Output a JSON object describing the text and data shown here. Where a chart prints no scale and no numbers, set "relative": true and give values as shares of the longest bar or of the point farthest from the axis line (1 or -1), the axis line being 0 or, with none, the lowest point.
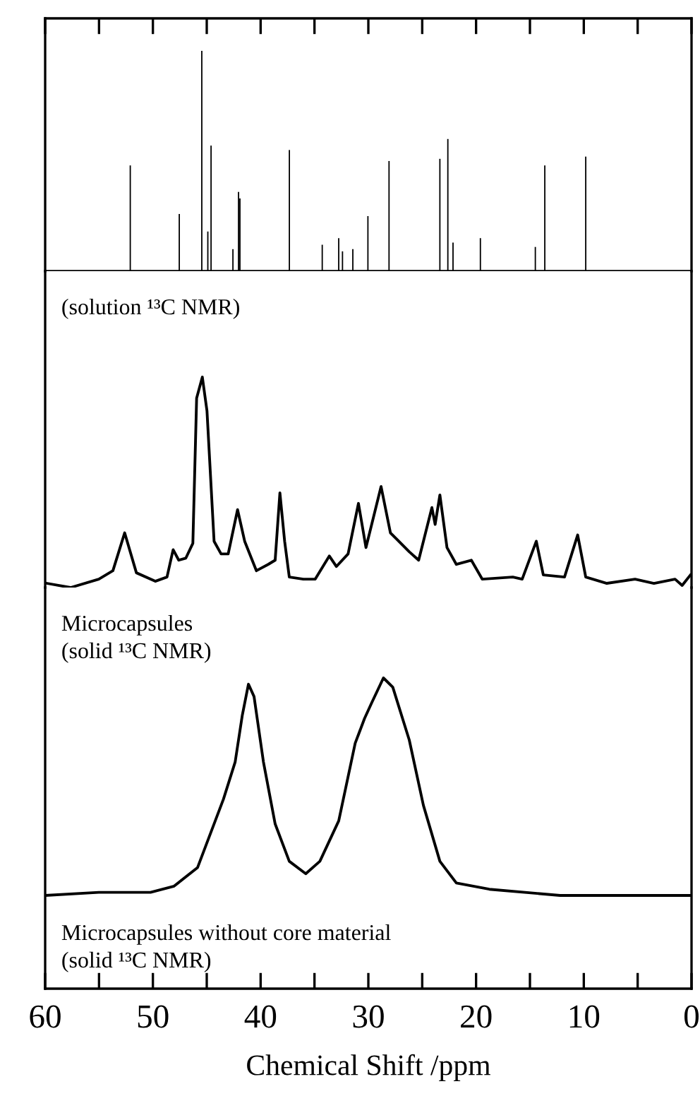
{
  "chart_data": [
    {
      "type": "bar",
      "relative": true,
      "tick_labels": false,
      "xlim": [
        60,
        0
      ],
      "xticks": [
        60,
        {
          "value": 55,
          "label": null
        },
        50,
        {
          "value": 45,
          "label": null
        },
        40,
        {
          "value": 35,
          "label": null
        },
        30,
        {
          "value": 25,
          "label": null
        },
        20,
        {
          "value": 15,
          "label": null
        },
        10,
        {
          "value": 5,
          "label": null
        },
        0
      ],
      "x": [
        52.1,
        47.55,
        45.46,
        44.9,
        44.6,
        42.57,
        42.05,
        41.92,
        37.33,
        34.28,
        32.75,
        32.4,
        31.44,
        30.04,
        28.08,
        23.36,
        22.62,
        22.14,
        19.6,
        14.5,
        13.62,
        9.82
      ],
      "values": [
        0.48,
        0.26,
        1.0,
        0.18,
        0.57,
        0.1,
        0.36,
        0.33,
        0.55,
        0.12,
        0.15,
        0.09,
        0.1,
        0.25,
        0.5,
        0.51,
        0.6,
        0.13,
        0.15,
        0.11,
        0.48,
        0.52
      ],
      "color": "#000000",
      "annotations": [
        "(solution ¹³C NMR)"
      ]
    },
    {
      "type": "line",
      "relative": true,
      "tick_labels": false,
      "xlim": [
        60,
        0
      ],
      "color": "#000000",
      "x": [
        59.83,
        57.64,
        55.02,
        53.71,
        52.62,
        51.53,
        49.78,
        48.69,
        48.12,
        47.6,
        46.94,
        46.29,
        45.94,
        45.41,
        44.98,
        44.32,
        43.67,
        43.01,
        42.14,
        41.48,
        40.39,
        39.3,
        38.65,
        38.21,
        37.77,
        37.34,
        36.03,
        34.93,
        33.62,
        32.97,
        31.88,
        30.92,
        30.22,
        28.82,
        27.95,
        26.2,
        25.33,
        24.1,
        23.8,
        23.36,
        22.7,
        21.83,
        20.44,
        19.43,
        16.59,
        15.72,
        14.41,
        13.76,
        11.79,
        10.57,
        9.82,
        7.86,
        5.24,
        3.49,
        1.53,
        0.87,
        0.1
      ],
      "values": [
        0.02,
        0.0,
        0.04,
        0.08,
        0.26,
        0.07,
        0.03,
        0.05,
        0.18,
        0.13,
        0.14,
        0.21,
        0.9,
        1.0,
        0.84,
        0.22,
        0.16,
        0.16,
        0.37,
        0.22,
        0.08,
        0.11,
        0.13,
        0.45,
        0.22,
        0.05,
        0.04,
        0.04,
        0.15,
        0.1,
        0.16,
        0.4,
        0.19,
        0.48,
        0.26,
        0.17,
        0.13,
        0.38,
        0.3,
        0.44,
        0.19,
        0.11,
        0.13,
        0.04,
        0.05,
        0.04,
        0.22,
        0.06,
        0.05,
        0.25,
        0.05,
        0.02,
        0.04,
        0.02,
        0.04,
        0.01,
        0.06
      ],
      "annotations": [
        "Microcapsules",
        "(solid ¹³C NMR)"
      ]
    },
    {
      "type": "line",
      "relative": true,
      "tick_labels": "x",
      "xlim": [
        60,
        0
      ],
      "color": "#000000",
      "xticks": [
        60,
        {
          "value": 55,
          "label": null
        },
        50,
        {
          "value": 45,
          "label": null
        },
        40,
        {
          "value": 35,
          "label": null
        },
        30,
        {
          "value": 25,
          "label": null
        },
        20,
        {
          "value": 15,
          "label": null
        },
        10,
        {
          "value": 5,
          "label": null
        },
        0
      ],
      "xlabel": "Chemical Shift /ppm",
      "x": [
        60,
        55.02,
        50.22,
        48.03,
        45.85,
        43.45,
        42.36,
        41.7,
        41.13,
        40.61,
        39.74,
        38.65,
        37.34,
        35.81,
        34.5,
        32.75,
        31.22,
        30.35,
        29.69,
        28.6,
        27.73,
        26.2,
        24.89,
        23.36,
        21.83,
        18.77,
        12.2,
        5.67,
        0.1
      ],
      "values": [
        0.3,
        0.31,
        0.31,
        0.33,
        0.39,
        0.61,
        0.73,
        0.88,
        0.98,
        0.94,
        0.73,
        0.53,
        0.41,
        0.37,
        0.41,
        0.54,
        0.79,
        0.87,
        0.92,
        1.0,
        0.97,
        0.8,
        0.59,
        0.41,
        0.34,
        0.32,
        0.3,
        0.3,
        0.3
      ],
      "annotations": [
        "Microcapsules without core material",
        "(solid ¹³C NMR)"
      ]
    }
  ]
}
